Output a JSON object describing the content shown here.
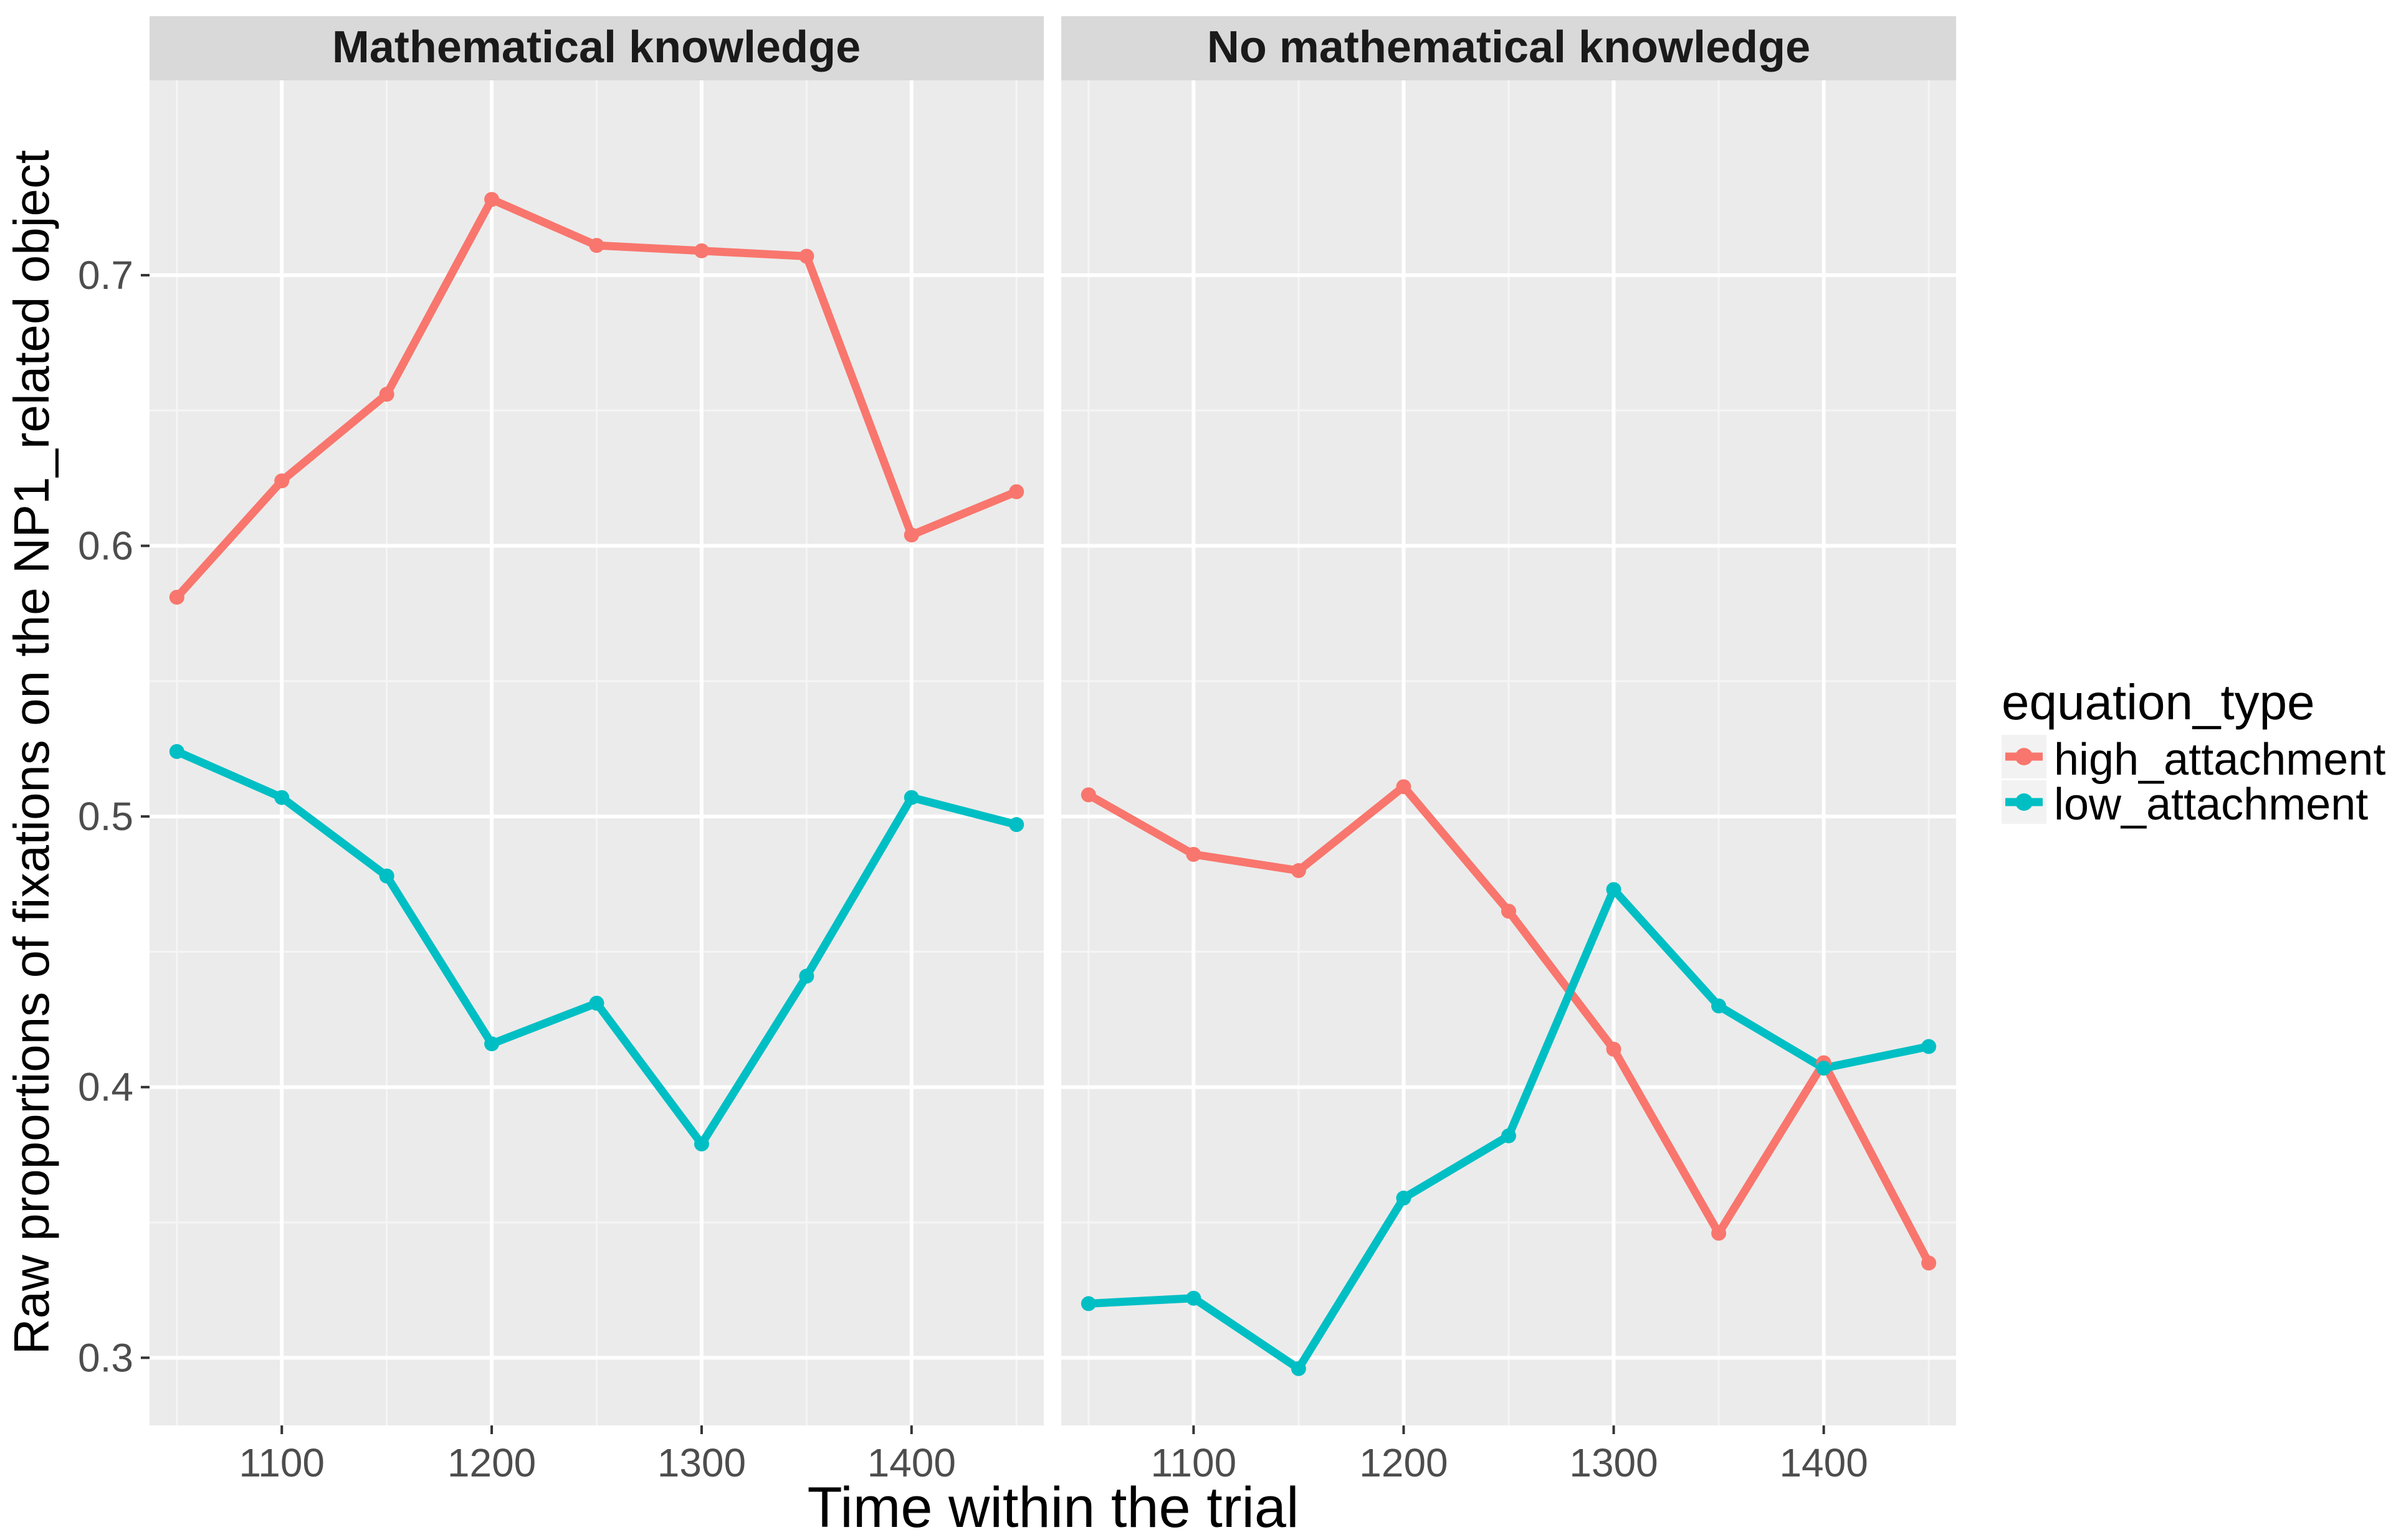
{
  "chart_data": {
    "type": "line",
    "facet_variable_values": [
      "Mathematical knowledge",
      "No mathematical knowledge"
    ],
    "xlabel": "Time within the trial",
    "ylabel": "Raw proportions of fixations on the NP1_related object",
    "xlim": [
      1037,
      1463
    ],
    "ylim": [
      0.275,
      0.772
    ],
    "x_ticks": [
      1100,
      1200,
      1300,
      1400
    ],
    "x_tick_labels": [
      "1100",
      "1200",
      "1300",
      "1400"
    ],
    "y_ticks": [
      0.3,
      0.4,
      0.5,
      0.6,
      0.7
    ],
    "y_tick_labels": [
      "0.3",
      "0.4",
      "0.5",
      "0.6",
      "0.7"
    ],
    "grid": true,
    "legend": {
      "title": "equation_type",
      "position": "right",
      "entries": [
        "high_attachment",
        "low_attachment"
      ]
    },
    "x": [
      1050,
      1100,
      1150,
      1200,
      1250,
      1300,
      1350,
      1400,
      1450
    ],
    "panels": [
      {
        "title": "Mathematical knowledge",
        "series": [
          {
            "name": "high_attachment",
            "color": "#F8766D",
            "values": [
              0.581,
              0.624,
              0.656,
              0.728,
              0.711,
              0.709,
              0.707,
              0.604,
              0.62
            ]
          },
          {
            "name": "low_attachment",
            "color": "#00BFC4",
            "values": [
              0.524,
              0.507,
              0.478,
              0.416,
              0.431,
              0.379,
              0.441,
              0.507,
              0.497
            ]
          }
        ]
      },
      {
        "title": "No mathematical knowledge",
        "series": [
          {
            "name": "high_attachment",
            "color": "#F8766D",
            "values": [
              0.508,
              0.486,
              0.48,
              0.511,
              0.465,
              0.414,
              0.346,
              0.409,
              0.335
            ]
          },
          {
            "name": "low_attachment",
            "color": "#00BFC4",
            "values": [
              0.32,
              0.322,
              0.296,
              0.359,
              0.382,
              0.473,
              0.43,
              0.407,
              0.415
            ]
          }
        ]
      }
    ]
  }
}
